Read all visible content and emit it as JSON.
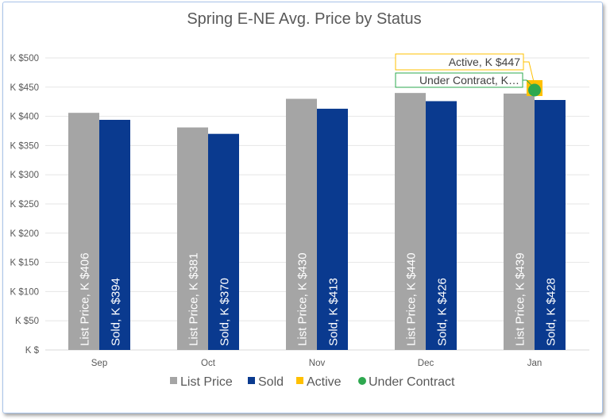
{
  "chart_data": {
    "type": "bar",
    "title": "Spring E-NE  Avg. Price by Status",
    "categories": [
      "Sep",
      "Oct",
      "Nov",
      "Dec",
      "Jan"
    ],
    "ylim": [
      0,
      500
    ],
    "yticks": [
      0,
      50,
      100,
      150,
      200,
      250,
      300,
      350,
      400,
      450,
      500
    ],
    "ytick_labels": [
      "K $",
      "K $50",
      "K $100",
      "K $150",
      "K $200",
      "K $250",
      "K $300",
      "K $350",
      "K $400",
      "K $450",
      "K $500"
    ],
    "series": [
      {
        "name": "List Price",
        "color": "#a5a5a5",
        "values": [
          406,
          381,
          430,
          440,
          439
        ],
        "labels": [
          "List Price, K $406",
          "List Price, K $381",
          "List Price, K $430",
          "List Price, K $440",
          "List Price, K $439"
        ]
      },
      {
        "name": "Sold",
        "color": "#0a3a8f",
        "values": [
          394,
          370,
          413,
          426,
          428
        ],
        "labels": [
          "Sold, K $394",
          "Sold, K $370",
          "Sold, K $413",
          "Sold, K $426",
          "Sold, K $428"
        ]
      },
      {
        "name": "Active",
        "color": "#ffc000",
        "values": [
          null,
          null,
          null,
          null,
          447
        ],
        "labels": [
          "",
          "",
          "",
          "",
          "Active, K $447"
        ]
      },
      {
        "name": "Under Contract",
        "color": "#2ea84f",
        "values": [
          null,
          null,
          null,
          null,
          445
        ],
        "labels": [
          "",
          "",
          "",
          "",
          "Under Contract, K…"
        ]
      }
    ],
    "grid": true,
    "legend_position": "bottom"
  }
}
